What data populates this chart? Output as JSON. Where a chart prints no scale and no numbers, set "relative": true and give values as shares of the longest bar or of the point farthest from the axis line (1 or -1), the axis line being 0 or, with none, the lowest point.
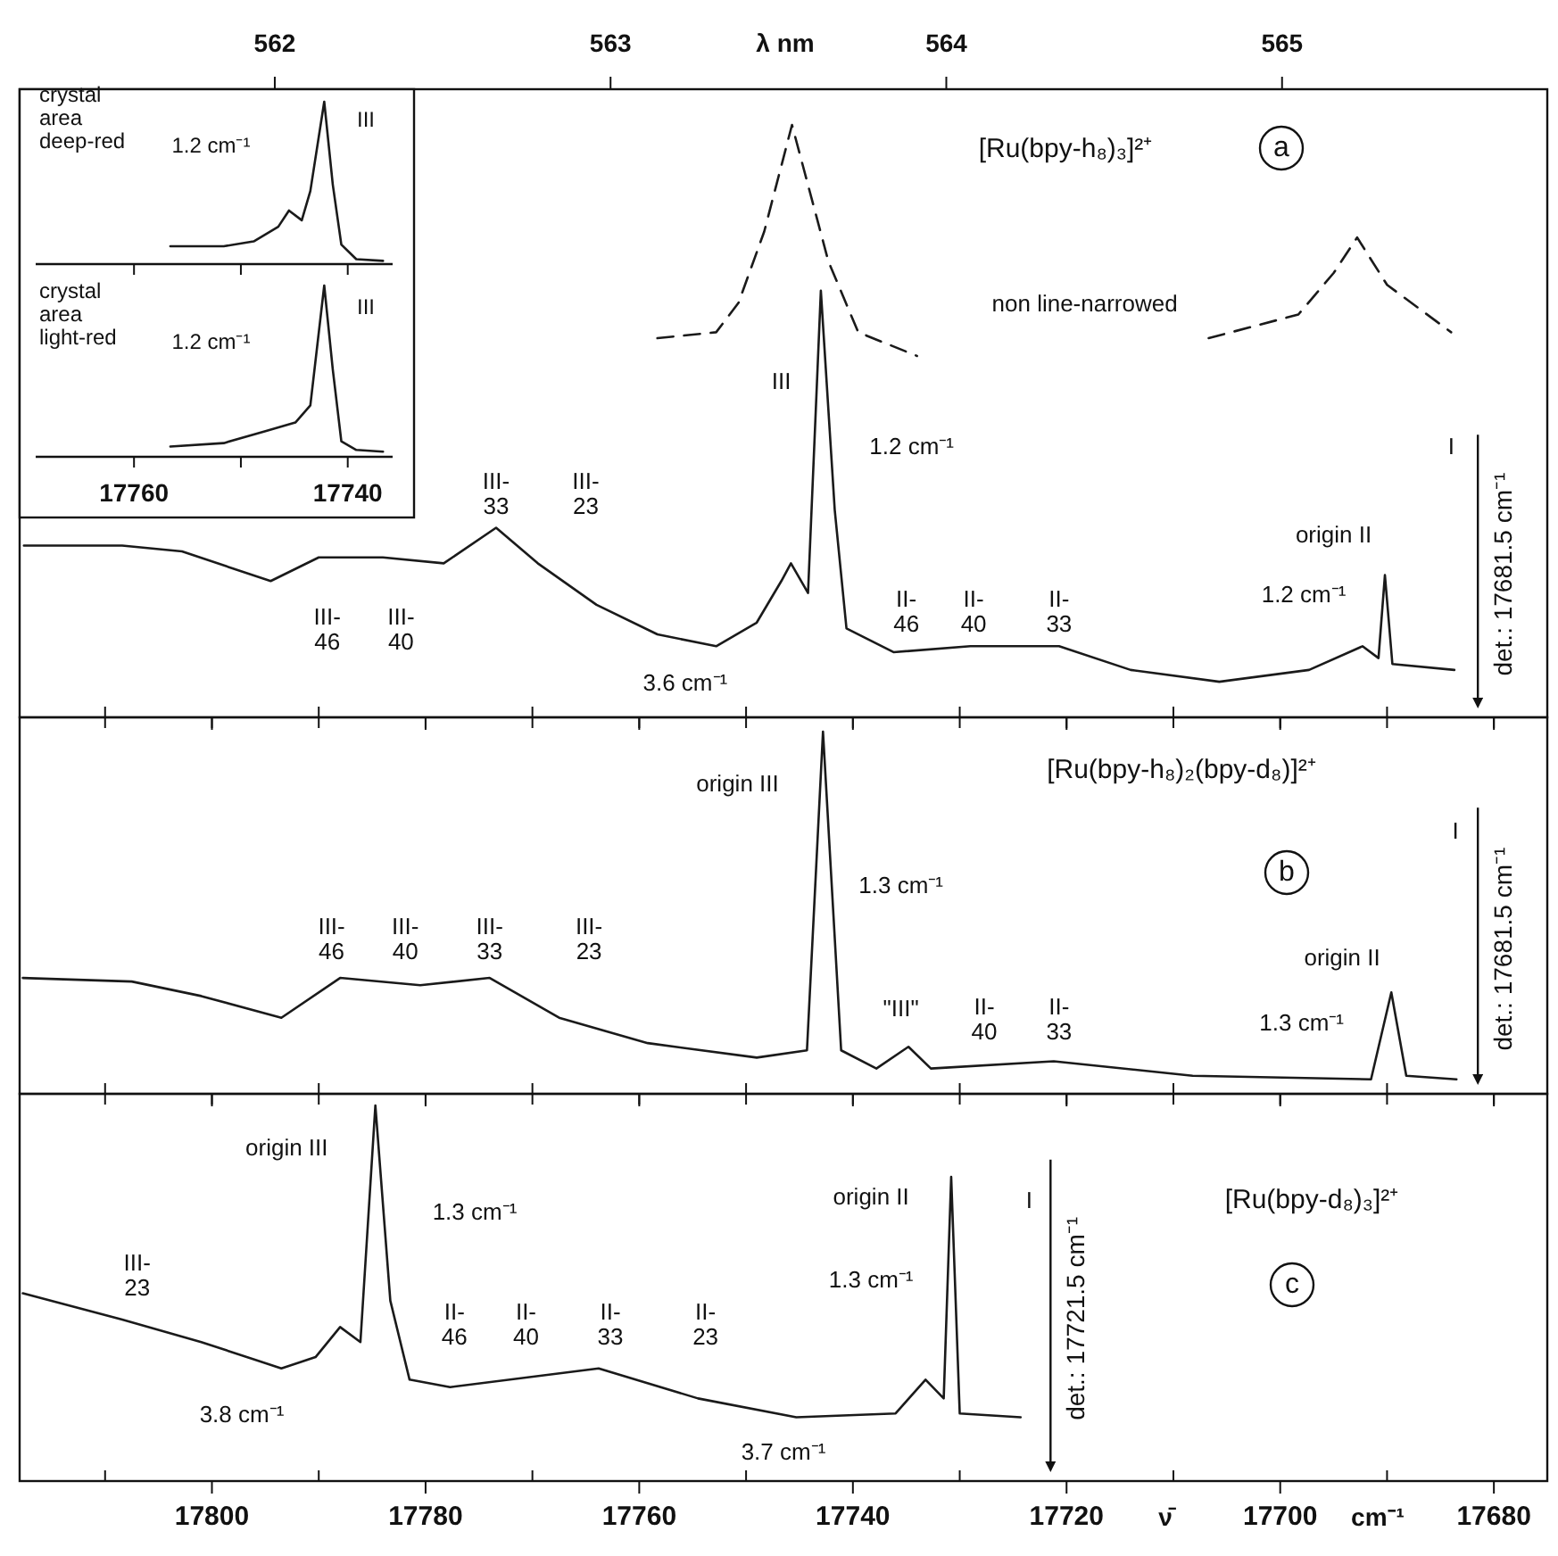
{
  "chart_data": [
    {
      "type": "line",
      "relative": true,
      "tick_labels": false,
      "title": "[Ru(bpy-h₈)₃]²⁺",
      "x2label": "λ nm",
      "xlim": [
        17818,
        17675
      ],
      "xticks": [
        {
          "value": 17810,
          "label": null
        },
        17800,
        {
          "value": 17790,
          "label": null
        },
        17780,
        {
          "value": 17770,
          "label": null
        },
        17760,
        {
          "value": 17750,
          "label": null
        },
        17740,
        {
          "value": 17730,
          "label": null
        },
        17720,
        {
          "value": 17710,
          "label": null
        },
        17700,
        {
          "value": 17690,
          "label": null
        },
        17680
      ],
      "x2lim": [
        561.24,
        565.79
      ],
      "x2ticks": [
        562,
        563,
        564,
        565
      ],
      "series": [
        {
          "color": "#1a1a1a",
          "line_style": "solid",
          "x": [
            17817.6,
            17808.4,
            17802.8,
            17794.5,
            17790,
            17784,
            17778.3,
            17773.4,
            17769.5,
            17764,
            17758.3,
            17752.8,
            17749,
            17746.7,
            17745.8,
            17744.2,
            17743,
            17741.7,
            17740.6,
            17736.2,
            17729,
            17720.7,
            17714,
            17705.7,
            17697.3,
            17692.3,
            17690.8,
            17690.2,
            17689.5,
            17683.7
          ],
          "values": [
            0.29,
            0.29,
            0.28,
            0.23,
            0.27,
            0.27,
            0.26,
            0.32,
            0.26,
            0.19,
            0.14,
            0.12,
            0.16,
            0.23,
            0.26,
            0.21,
            0.72,
            0.35,
            0.15,
            0.11,
            0.12,
            0.12,
            0.08,
            0.06,
            0.08,
            0.12,
            0.1,
            0.24,
            0.09,
            0.08
          ]
        },
        {
          "color": "#1a1a1a",
          "line_style": "dashed",
          "x": [
            17758.3,
            17752.8,
            17750.7,
            17748.3,
            17745.7,
            17742.3,
            17739.5,
            17734,
            17720,
            17706.7,
            17698.3,
            17695,
            17692.8,
            17690,
            17684
          ],
          "values": [
            0.64,
            0.65,
            0.7,
            0.82,
            1.0,
            0.77,
            0.65,
            0.61,
            null,
            0.64,
            0.68,
            0.75,
            0.81,
            0.73,
            0.65
          ]
        }
      ],
      "ref_lines": [
        {
          "axis": "x",
          "value": 17681.5,
          "label": "det.: 17681.5 cm⁻¹"
        }
      ],
      "annotations": [
        "III",
        "1.2 cm⁻¹",
        "non line-narrowed",
        "III-\n33",
        "III-\n23",
        "III-\n46",
        "III-\n40",
        "3.6 cm⁻¹",
        "II-\n46",
        "II-\n40",
        "II-\n33",
        "origin II",
        "1.2 cm⁻¹",
        "I",
        "a"
      ]
    },
    {
      "type": "line",
      "relative": true,
      "tick_labels": false,
      "title": "crystal\narea\ndeep-red",
      "xlim": [
        17769.2,
        17735.8
      ],
      "xticks": [
        17760,
        {
          "value": 17750,
          "label": null
        },
        17740
      ],
      "series": [
        {
          "color": "#1a1a1a",
          "x": [
            17756.6,
            17751.6,
            17748.8,
            17746.5,
            17745.5,
            17744.3,
            17743.5,
            17742.2,
            17741.4,
            17740.6,
            17739.2,
            17736.7
          ],
          "values": [
            0.11,
            0.11,
            0.14,
            0.23,
            0.33,
            0.27,
            0.45,
            1.0,
            0.49,
            0.12,
            0.03,
            0.02
          ]
        }
      ],
      "annotations": [
        "III",
        "1.2 cm⁻¹"
      ]
    },
    {
      "type": "line",
      "relative": true,
      "title": "crystal\narea\nlight-red",
      "xlim": [
        17769.2,
        17735.8
      ],
      "xticks": [
        17760,
        {
          "value": 17750,
          "label": null
        },
        17740
      ],
      "series": [
        {
          "color": "#1a1a1a",
          "x": [
            17756.6,
            17751.6,
            17747.7,
            17744.9,
            17743.5,
            17742.2,
            17741.4,
            17740.6,
            17739.2,
            17736.7
          ],
          "values": [
            0.06,
            0.08,
            0.15,
            0.2,
            0.3,
            1.0,
            0.51,
            0.09,
            0.04,
            0.03
          ]
        }
      ],
      "annotations": [
        "III",
        "1.2 cm⁻¹"
      ]
    },
    {
      "type": "line",
      "relative": true,
      "tick_labels": false,
      "title": "[Ru(bpy-h₈)₂(bpy-d₈)]²⁺",
      "xlim": [
        17818,
        17675
      ],
      "xticks": [
        {
          "value": 17810,
          "label": null
        },
        17800,
        {
          "value": 17790,
          "label": null
        },
        17780,
        {
          "value": 17770,
          "label": null
        },
        17760,
        {
          "value": 17750,
          "label": null
        },
        17740,
        {
          "value": 17730,
          "label": null
        },
        17720,
        {
          "value": 17710,
          "label": null
        },
        17700,
        {
          "value": 17690,
          "label": null
        },
        17680
      ],
      "series": [
        {
          "color": "#1a1a1a",
          "x": [
            17817.7,
            17807.5,
            17801,
            17793.5,
            17788,
            17780.5,
            17774,
            17767.5,
            17759.2,
            17749,
            17744.3,
            17742.8,
            17741.1,
            17737.8,
            17734.8,
            17732.7,
            17721.2,
            17708.2,
            17691.5,
            17689.6,
            17688.2,
            17683.5
          ],
          "values": [
            0.32,
            0.31,
            0.27,
            0.21,
            0.32,
            0.3,
            0.32,
            0.21,
            0.14,
            0.1,
            0.12,
            1.0,
            0.12,
            0.07,
            0.13,
            0.07,
            0.09,
            0.05,
            0.04,
            0.28,
            0.05,
            0.04
          ]
        }
      ],
      "ref_lines": [
        {
          "axis": "x",
          "value": 17681.5,
          "label": "det.: 17681.5 cm⁻¹"
        }
      ],
      "annotations": [
        "origin III",
        "1.3 cm⁻¹",
        "III-\n46",
        "III-\n40",
        "III-\n33",
        "III-\n23",
        "\"III\"",
        "II-\n40",
        "II-\n33",
        "origin II",
        "1.3 cm⁻¹",
        "I",
        "b"
      ]
    },
    {
      "type": "line",
      "relative": true,
      "title": "[Ru(bpy-d₈)₃]²⁺",
      "xlabel": "ν̄ cm⁻¹",
      "xlim": [
        17818,
        17675
      ],
      "xticks": [
        {
          "value": 17810,
          "label": null
        },
        17800,
        {
          "value": 17790,
          "label": null
        },
        17780,
        {
          "value": 17770,
          "label": null
        },
        17760,
        {
          "value": 17750,
          "label": null
        },
        17740,
        {
          "value": 17730,
          "label": null
        },
        17720,
        {
          "value": 17710,
          "label": null
        },
        17700,
        {
          "value": 17690,
          "label": null
        },
        17680
      ],
      "series": [
        {
          "color": "#1a1a1a",
          "x": [
            17817.7,
            17808.4,
            17801,
            17793.5,
            17790.3,
            17788,
            17786.1,
            17784.7,
            17783.3,
            17781.5,
            17777.7,
            17763.8,
            17754.5,
            17745.3,
            17736,
            17733.2,
            17731.5,
            17730.8,
            17730,
            17724.3
          ],
          "values": [
            0.5,
            0.43,
            0.37,
            0.3,
            0.33,
            0.41,
            0.37,
            1.0,
            0.48,
            0.27,
            0.25,
            0.3,
            0.22,
            0.17,
            0.18,
            0.27,
            0.22,
            0.81,
            0.18,
            0.17
          ]
        }
      ],
      "ref_lines": [
        {
          "axis": "x",
          "value": 17721.5,
          "label": "det.: 17721.5 cm⁻¹"
        }
      ],
      "annotations": [
        "origin III",
        "1.3 cm⁻¹",
        "III-\n23",
        "II-\n46",
        "II-\n40",
        "II-\n33",
        "II-\n23",
        "3.8 cm⁻¹",
        "3.7 cm⁻¹",
        "origin II",
        "1.3 cm⁻¹",
        "I",
        "c"
      ]
    }
  ]
}
